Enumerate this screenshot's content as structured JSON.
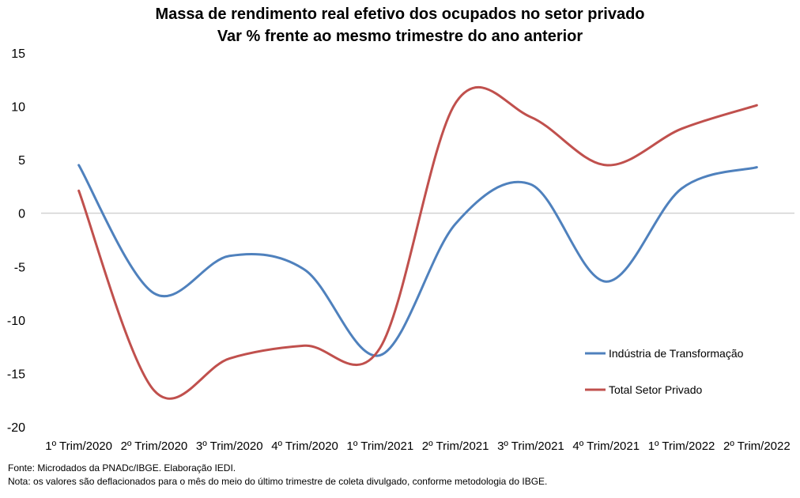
{
  "chart_data": {
    "type": "line",
    "title": "Massa de rendimento real efetivo dos ocupados no setor privado",
    "subtitle": "Var % frente ao mesmo trimestre do ano anterior",
    "categories": [
      "1º Trim/2020",
      "2º Trim/2020",
      "3º Trim/2020",
      "4º Trim/2020",
      "1º Trim/2021",
      "2º Trim/2021",
      "3º Trim/2021",
      "4º Trim/2021",
      "1º Trim/2022",
      "2º Trim/2022"
    ],
    "series": [
      {
        "name": "Indústria de Transformação",
        "color": "#4f81bd",
        "values": [
          4.5,
          -7.5,
          -4.0,
          -5.3,
          -13.3,
          -1.0,
          2.7,
          -6.4,
          2.3,
          4.3
        ]
      },
      {
        "name": "Total Setor Privado",
        "color": "#c0504d",
        "values": [
          2.1,
          -16.6,
          -13.6,
          -12.4,
          -12.6,
          10.3,
          9.0,
          4.5,
          7.9,
          10.1
        ]
      }
    ],
    "ylim": [
      -20,
      15
    ],
    "yticks": [
      15,
      10,
      5,
      0,
      -5,
      -10,
      -15,
      -20
    ],
    "grid": false,
    "legend_position": "right"
  },
  "notes": {
    "source": "Fonte: Microdados da PNADc/IBGE. Elaboração IEDI.",
    "note": "Nota: os valores são deflacionados para o mês do meio do último trimestre de coleta divulgado, conforme metodologia do IBGE."
  }
}
